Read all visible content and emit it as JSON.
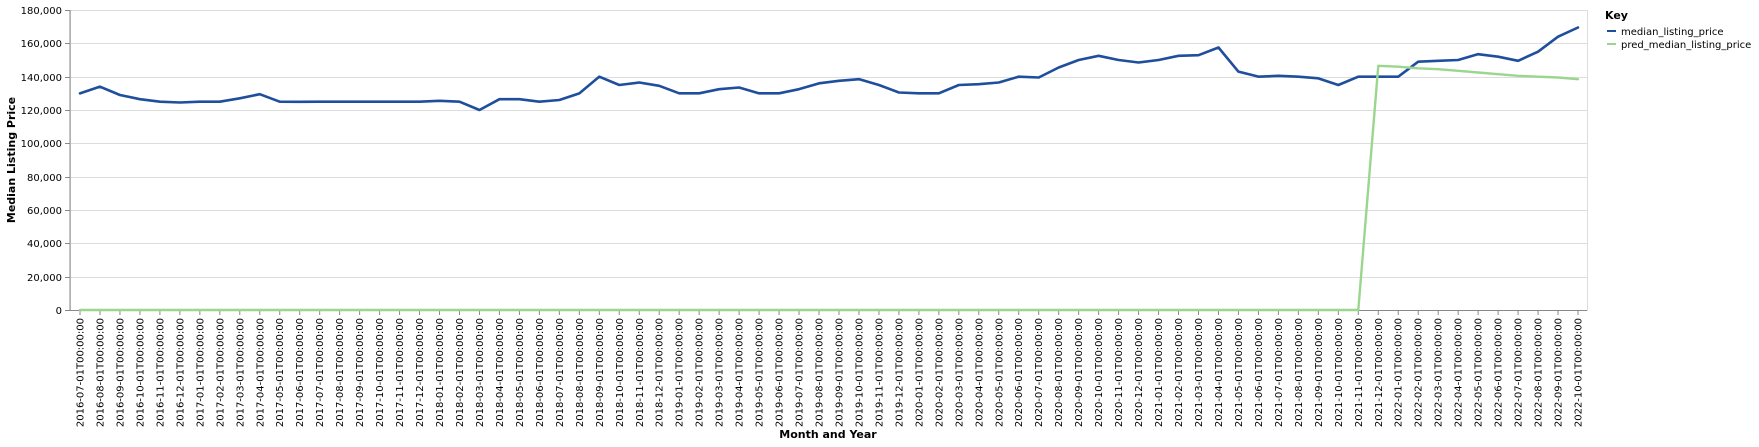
{
  "chart_data": {
    "type": "line",
    "xlabel": "Month and Year",
    "ylabel": "Median Listing Price",
    "ylim": [
      0,
      180000
    ],
    "yticks": [
      "0",
      "20,000",
      "40,000",
      "60,000",
      "80,000",
      "100,000",
      "120,000",
      "140,000",
      "160,000",
      "180,000"
    ],
    "grid": true,
    "legend": {
      "title": "Key",
      "position": "top-right"
    },
    "x": [
      "2016-07-01T00:00:00",
      "2016-08-01T00:00:00",
      "2016-09-01T00:00:00",
      "2016-10-01T00:00:00",
      "2016-11-01T00:00:00",
      "2016-12-01T00:00:00",
      "2017-01-01T00:00:00",
      "2017-02-01T00:00:00",
      "2017-03-01T00:00:00",
      "2017-04-01T00:00:00",
      "2017-05-01T00:00:00",
      "2017-06-01T00:00:00",
      "2017-07-01T00:00:00",
      "2017-08-01T00:00:00",
      "2017-09-01T00:00:00",
      "2017-10-01T00:00:00",
      "2017-11-01T00:00:00",
      "2017-12-01T00:00:00",
      "2018-01-01T00:00:00",
      "2018-02-01T00:00:00",
      "2018-03-01T00:00:00",
      "2018-04-01T00:00:00",
      "2018-05-01T00:00:00",
      "2018-06-01T00:00:00",
      "2018-07-01T00:00:00",
      "2018-08-01T00:00:00",
      "2018-09-01T00:00:00",
      "2018-10-01T00:00:00",
      "2018-11-01T00:00:00",
      "2018-12-01T00:00:00",
      "2019-01-01T00:00:00",
      "2019-02-01T00:00:00",
      "2019-03-01T00:00:00",
      "2019-04-01T00:00:00",
      "2019-05-01T00:00:00",
      "2019-06-01T00:00:00",
      "2019-07-01T00:00:00",
      "2019-08-01T00:00:00",
      "2019-09-01T00:00:00",
      "2019-10-01T00:00:00",
      "2019-11-01T00:00:00",
      "2019-12-01T00:00:00",
      "2020-01-01T00:00:00",
      "2020-02-01T00:00:00",
      "2020-03-01T00:00:00",
      "2020-04-01T00:00:00",
      "2020-05-01T00:00:00",
      "2020-06-01T00:00:00",
      "2020-07-01T00:00:00",
      "2020-08-01T00:00:00",
      "2020-09-01T00:00:00",
      "2020-10-01T00:00:00",
      "2020-11-01T00:00:00",
      "2020-12-01T00:00:00",
      "2021-01-01T00:00:00",
      "2021-02-01T00:00:00",
      "2021-03-01T00:00:00",
      "2021-04-01T00:00:00",
      "2021-05-01T00:00:00",
      "2021-06-01T00:00:00",
      "2021-07-01T00:00:00",
      "2021-08-01T00:00:00",
      "2021-09-01T00:00:00",
      "2021-10-01T00:00:00",
      "2021-11-01T00:00:00",
      "2021-12-01T00:00:00",
      "2022-01-01T00:00:00",
      "2022-02-01T00:00:00",
      "2022-03-01T00:00:00",
      "2022-04-01T00:00:00",
      "2022-05-01T00:00:00",
      "2022-06-01T00:00:00",
      "2022-07-01T00:00:00",
      "2022-08-01T00:00:00",
      "2022-09-01T00:00:00",
      "2022-10-01T00:00:00"
    ],
    "series": [
      {
        "name": "median_listing_price",
        "color": "#1f4e9c",
        "values": [
          130000,
          134000,
          129000,
          126500,
          125000,
          124500,
          125000,
          125000,
          127000,
          129500,
          125000,
          124900,
          125000,
          125000,
          125000,
          125000,
          125000,
          125000,
          125500,
          125000,
          120000,
          126500,
          126500,
          125000,
          126000,
          130000,
          140000,
          135000,
          136500,
          134500,
          130000,
          130000,
          132500,
          133500,
          130000,
          130000,
          132500,
          136000,
          137500,
          138500,
          135000,
          130500,
          130000,
          130000,
          135000,
          135500,
          136500,
          140000,
          139500,
          145500,
          150000,
          152500,
          150000,
          148500,
          150000,
          152500,
          152900,
          157500,
          143000,
          140000,
          140500,
          140000,
          139000,
          135000,
          140000,
          140000,
          140000,
          149000,
          149500,
          150000,
          153500,
          152000,
          149500,
          155000,
          164000,
          169500
        ]
      },
      {
        "name": "pred_median_listing_price",
        "color": "#9bd68e",
        "values": [
          0,
          0,
          0,
          0,
          0,
          0,
          0,
          0,
          0,
          0,
          0,
          0,
          0,
          0,
          0,
          0,
          0,
          0,
          0,
          0,
          0,
          0,
          0,
          0,
          0,
          0,
          0,
          0,
          0,
          0,
          0,
          0,
          0,
          0,
          0,
          0,
          0,
          0,
          0,
          0,
          0,
          0,
          0,
          0,
          0,
          0,
          0,
          0,
          0,
          0,
          0,
          0,
          0,
          0,
          0,
          0,
          0,
          0,
          0,
          0,
          0,
          0,
          0,
          0,
          0,
          146500,
          146000,
          145000,
          144500,
          143500,
          142500,
          141500,
          140500,
          140000,
          139500,
          138500
        ]
      }
    ]
  }
}
